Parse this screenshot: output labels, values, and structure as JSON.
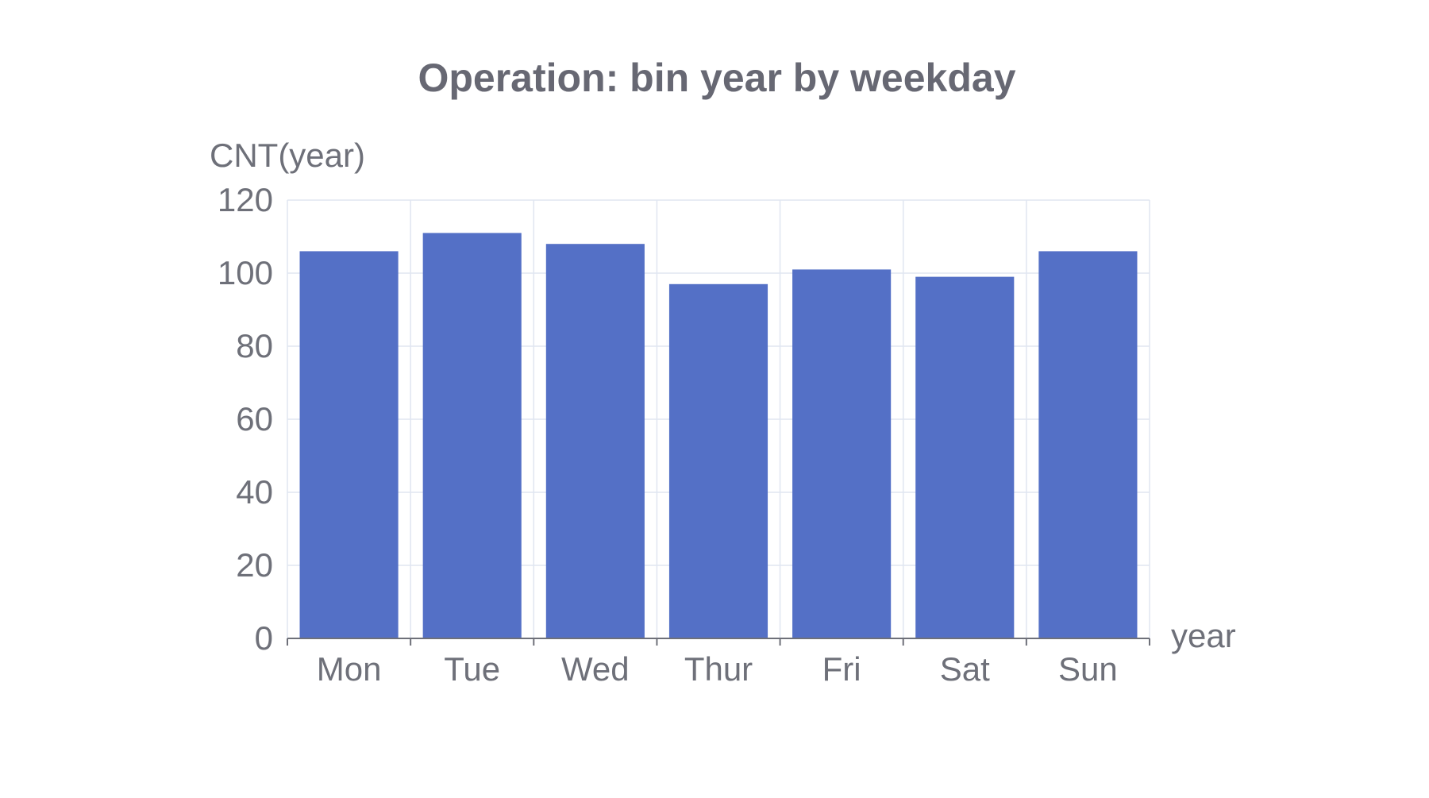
{
  "chart_data": {
    "type": "bar",
    "title": "Operation: bin year by weekday",
    "xlabel": "year",
    "ylabel": "CNT(year)",
    "categories": [
      "Mon",
      "Tue",
      "Wed",
      "Thur",
      "Fri",
      "Sat",
      "Sun"
    ],
    "values": [
      106,
      111,
      108,
      97,
      101,
      99,
      106
    ],
    "ylim": [
      0,
      120
    ],
    "yticks": [
      "0",
      "20",
      "40",
      "60",
      "80",
      "100",
      "120"
    ],
    "grid": true,
    "legend": "none",
    "bar_color": "#5470c6"
  }
}
